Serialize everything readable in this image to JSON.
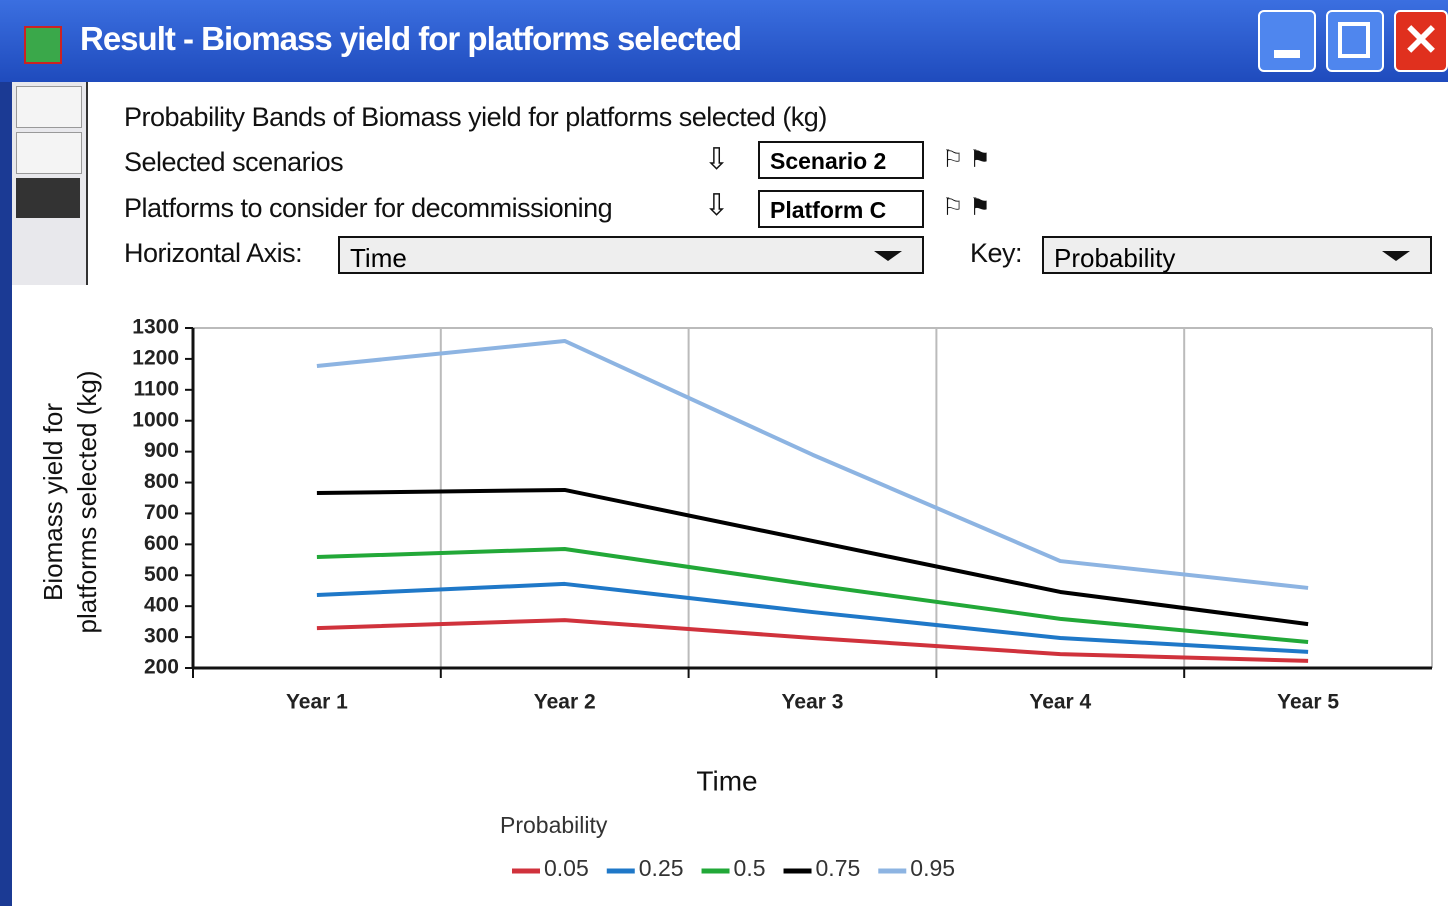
{
  "window": {
    "title": "Result - Biomass yield for platforms selected"
  },
  "header": {
    "heading": "Probability Bands of Biomass yield for platforms selected (kg)",
    "rows": [
      {
        "label": "Selected scenarios",
        "value": "Scenario 2"
      },
      {
        "label": "Platforms to consider for decommissioning",
        "value": "Platform C"
      }
    ],
    "horizontal_axis": {
      "label": "Horizontal Axis:",
      "value": "Time"
    },
    "key": {
      "label": "Key:",
      "value": "Probability"
    }
  },
  "chart_data": {
    "type": "line",
    "categories": [
      "Year 1",
      "Year 2",
      "Year 3",
      "Year 4",
      "Year 5"
    ],
    "series": [
      {
        "name": "0.05",
        "color": "#d0323c",
        "values": [
          329,
          355,
          297,
          245,
          223
        ]
      },
      {
        "name": "0.25",
        "color": "#1f78c8",
        "values": [
          436,
          472,
          381,
          297,
          252
        ]
      },
      {
        "name": "0.5",
        "color": "#22a838",
        "values": [
          559,
          585,
          469,
          359,
          284
        ]
      },
      {
        "name": "0.75",
        "color": "#000000",
        "values": [
          766,
          776,
          611,
          446,
          342
        ]
      },
      {
        "name": "0.95",
        "color": "#8db4e2",
        "values": [
          1177,
          1258,
          890,
          546,
          459
        ]
      }
    ],
    "ylim": [
      200,
      1300
    ],
    "yticks": [
      200,
      300,
      400,
      500,
      600,
      700,
      800,
      900,
      1000,
      1100,
      1200,
      1300
    ],
    "xlabel": "Time",
    "ylabel": [
      "Biomass yield for",
      "platforms selected (kg)"
    ],
    "legend_title": "Probability",
    "grid": true
  }
}
